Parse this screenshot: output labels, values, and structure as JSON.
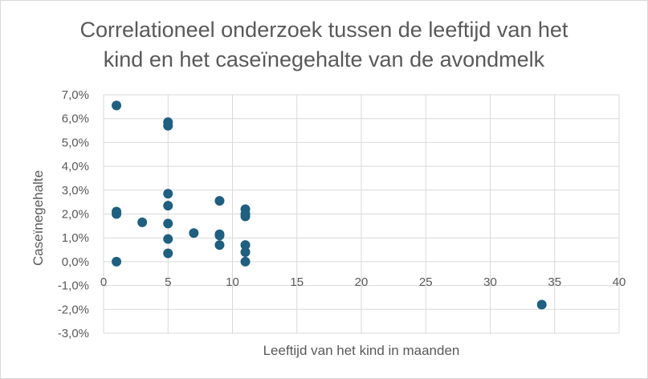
{
  "chart_data": {
    "type": "scatter",
    "title_line1": "Correlationeel onderzoek tussen de leeftijd van het",
    "title_line2": "kind en het caseïnegehalte van de avondmelk",
    "xlabel": "Leeftijd van het kind in maanden",
    "ylabel": "Caseïnegehalte",
    "xlim": [
      0,
      40
    ],
    "ylim": [
      -3.0,
      7.0
    ],
    "x_ticks": [
      0,
      5,
      10,
      15,
      20,
      25,
      30,
      35,
      40
    ],
    "x_tick_labels": [
      "0",
      "5",
      "10",
      "15",
      "20",
      "25",
      "30",
      "35",
      "40"
    ],
    "y_ticks": [
      -3,
      -2,
      -1,
      0,
      1,
      2,
      3,
      4,
      5,
      6,
      7
    ],
    "y_tick_labels": [
      "-3,0%",
      "-2,0%",
      "-1,0%",
      "0,0%",
      "1,0%",
      "2,0%",
      "3,0%",
      "4,0%",
      "5,0%",
      "6,0%",
      "7,0%"
    ],
    "grid": true,
    "marker_color": "#1f5f80",
    "points": [
      {
        "x": 1,
        "y": 6.55
      },
      {
        "x": 1,
        "y": 2.1
      },
      {
        "x": 1,
        "y": 2.0
      },
      {
        "x": 1,
        "y": 0.0
      },
      {
        "x": 3,
        "y": 1.65
      },
      {
        "x": 5,
        "y": 5.85
      },
      {
        "x": 5,
        "y": 5.7
      },
      {
        "x": 5,
        "y": 2.85
      },
      {
        "x": 5,
        "y": 2.35
      },
      {
        "x": 5,
        "y": 1.6
      },
      {
        "x": 5,
        "y": 0.95
      },
      {
        "x": 5,
        "y": 0.35
      },
      {
        "x": 7,
        "y": 1.2
      },
      {
        "x": 9,
        "y": 2.55
      },
      {
        "x": 9,
        "y": 1.15
      },
      {
        "x": 9,
        "y": 1.1
      },
      {
        "x": 9,
        "y": 0.7
      },
      {
        "x": 11,
        "y": 2.2
      },
      {
        "x": 11,
        "y": 2.0
      },
      {
        "x": 11,
        "y": 1.9
      },
      {
        "x": 11,
        "y": 0.7
      },
      {
        "x": 11,
        "y": 0.4
      },
      {
        "x": 11,
        "y": 0.0
      },
      {
        "x": 34,
        "y": -1.8
      }
    ]
  }
}
